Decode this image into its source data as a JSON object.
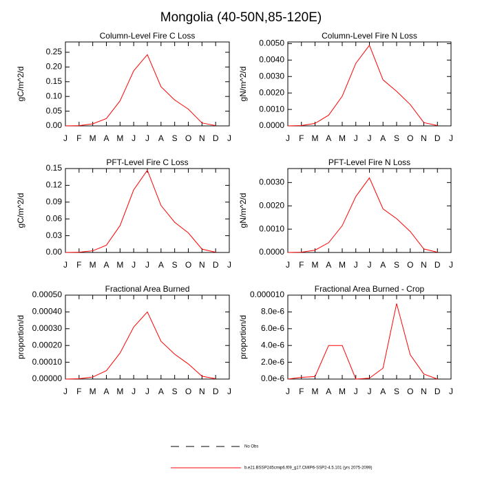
{
  "title": "Mongolia (40-50N,85-120E)",
  "legend": [
    {
      "label": "No Obs",
      "color": "#000000",
      "dashed": true
    },
    {
      "label": "b.e21.BSSP245cmip6.f09_g17.CMIP6-SSP2-4.5.101 (yrs 2075-2099)",
      "color": "#ff0000",
      "dashed": false
    }
  ],
  "chart_data": [
    {
      "type": "line",
      "title": "Column-Level Fire C Loss",
      "y_label": "gC/m^2/d",
      "color": "#ff0000",
      "categories": [
        "J",
        "F",
        "M",
        "A",
        "M",
        "J",
        "J",
        "A",
        "S",
        "O",
        "N",
        "D",
        "J"
      ],
      "values": [
        0,
        0.001,
        0.007,
        0.025,
        0.085,
        0.187,
        0.242,
        0.133,
        0.088,
        0.057,
        0.01,
        0.001,
        null
      ],
      "ylim": [
        0,
        0.285
      ],
      "yticks": [
        {
          "value": 0,
          "label": "0.00"
        },
        0.05,
        {
          "value": 0.1,
          "label": "0.10"
        },
        0.15,
        {
          "value": 0.2,
          "label": "0.20"
        },
        0.25
      ]
    },
    {
      "type": "line",
      "title": "Column-Level Fire N Loss",
      "y_label": "gN/m^2/d",
      "color": "#ff0000",
      "categories": [
        "J",
        "F",
        "M",
        "A",
        "M",
        "J",
        "J",
        "A",
        "S",
        "O",
        "N",
        "D",
        "J"
      ],
      "values": [
        0,
        2e-05,
        0.00015,
        0.00065,
        0.0018,
        0.0038,
        0.0049,
        0.0028,
        0.0021,
        0.0013,
        0.0002,
        2e-05,
        null
      ],
      "ylim": [
        0,
        0.0051
      ],
      "yticks": [
        {
          "value": 0,
          "label": "0.0000"
        },
        {
          "value": 0.001,
          "label": "0.0010"
        },
        {
          "value": 0.002,
          "label": "0.0020"
        },
        {
          "value": 0.003,
          "label": "0.0030"
        },
        {
          "value": 0.004,
          "label": "0.0040"
        },
        {
          "value": 0.005,
          "label": "0.0050"
        }
      ]
    },
    {
      "type": "line",
      "title": "PFT-Level Fire C Loss",
      "y_label": "gC/m^2/d",
      "color": "#ff0000",
      "categories": [
        "J",
        "F",
        "M",
        "A",
        "M",
        "J",
        "J",
        "A",
        "S",
        "O",
        "N",
        "D",
        "J"
      ],
      "values": [
        0,
        0.0005,
        0.003,
        0.013,
        0.048,
        0.112,
        0.147,
        0.084,
        0.054,
        0.035,
        0.006,
        0.0005,
        null
      ],
      "ylim": [
        0,
        0.15
      ],
      "yticks": [
        {
          "value": 0,
          "label": "0.00"
        },
        0.03,
        0.06,
        0.09,
        0.12,
        0.15
      ]
    },
    {
      "type": "line",
      "title": "PFT-Level Fire N Loss",
      "y_label": "gN/m^2/d",
      "color": "#ff0000",
      "categories": [
        "J",
        "F",
        "M",
        "A",
        "M",
        "J",
        "J",
        "A",
        "S",
        "O",
        "N",
        "D",
        "J"
      ],
      "values": [
        0,
        1e-05,
        0.0001,
        0.00042,
        0.00115,
        0.0024,
        0.0032,
        0.00187,
        0.00145,
        0.0009,
        0.00015,
        1e-05,
        null
      ],
      "ylim": [
        0,
        0.0036
      ],
      "yticks": [
        {
          "value": 0,
          "label": "0.0000"
        },
        {
          "value": 0.001,
          "label": "0.0010"
        },
        {
          "value": 0.002,
          "label": "0.0020"
        },
        {
          "value": 0.003,
          "label": "0.0030"
        }
      ]
    },
    {
      "type": "line",
      "title": "Fractional Area Burned",
      "y_label": "proportion/d",
      "color": "#ff0000",
      "categories": [
        "J",
        "F",
        "M",
        "A",
        "M",
        "J",
        "J",
        "A",
        "S",
        "O",
        "N",
        "D",
        "J"
      ],
      "values": [
        0,
        2e-06,
        1.2e-05,
        5e-05,
        0.000155,
        0.00031,
        0.0004,
        0.000225,
        0.000148,
        9e-05,
        1.7e-05,
        2e-06,
        null
      ],
      "ylim": [
        0,
        0.0005
      ],
      "yticks": [
        {
          "value": 0,
          "label": "0.00000"
        },
        {
          "value": 0.0001,
          "label": "0.00010"
        },
        {
          "value": 0.0002,
          "label": "0.00020"
        },
        {
          "value": 0.0003,
          "label": "0.00030"
        },
        {
          "value": 0.0004,
          "label": "0.00040"
        },
        {
          "value": 0.0005,
          "label": "0.00050"
        }
      ]
    },
    {
      "type": "line",
      "title": "Fractional Area Burned - Crop",
      "y_label": "proportion/d",
      "color": "#ff0000",
      "categories": [
        "J",
        "F",
        "M",
        "A",
        "M",
        "J",
        "J",
        "A",
        "S",
        "O",
        "N",
        "D",
        "J"
      ],
      "values": [
        0,
        2e-07,
        3e-07,
        4e-06,
        4e-06,
        0,
        1e-07,
        1.3e-06,
        9e-06,
        2.9e-06,
        6e-07,
        0,
        null
      ],
      "ylim": [
        0,
        1e-05
      ],
      "yticks": [
        {
          "value": 0,
          "label": "0.0e-6"
        },
        {
          "value": 2e-06,
          "label": "2.0e-6"
        },
        {
          "value": 4e-06,
          "label": "4.0e-6"
        },
        {
          "value": 6e-06,
          "label": "6.0e-6"
        },
        {
          "value": 8e-06,
          "label": "8.0e-6"
        },
        {
          "value": 1e-05,
          "label": "0.000010"
        }
      ]
    }
  ]
}
